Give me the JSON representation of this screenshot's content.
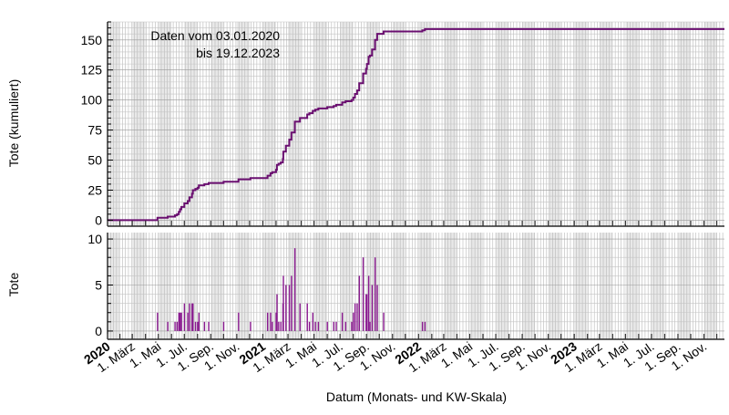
{
  "chart_data": [
    {
      "type": "line",
      "step": true,
      "ylabel": "Tote (kumuliert)",
      "ylim": [
        -5,
        165
      ],
      "yticks": [
        0,
        25,
        50,
        75,
        100,
        125,
        150
      ],
      "grid": true,
      "annotation": [
        "Daten vom 03.01.2020",
        "bis 19.12.2023"
      ],
      "date_range": [
        "2020-01-03",
        "2023-12-19"
      ],
      "color": "#6a0f70",
      "values_from": "cumulative sum of daily deaths"
    },
    {
      "type": "bar",
      "ylabel": "Tote",
      "ylim": [
        -0.9,
        10.7
      ],
      "yticks": [
        0,
        5,
        10
      ],
      "grid": true,
      "color": "#8a1a90",
      "events": [
        [
          "2020-04-29",
          2
        ],
        [
          "2020-05-23",
          1
        ],
        [
          "2020-06-09",
          1
        ],
        [
          "2020-06-14",
          1
        ],
        [
          "2020-06-18",
          2
        ],
        [
          "2020-06-21",
          2
        ],
        [
          "2020-06-24",
          2
        ],
        [
          "2020-07-01",
          3
        ],
        [
          "2020-07-09",
          2
        ],
        [
          "2020-07-13",
          3
        ],
        [
          "2020-07-19",
          3
        ],
        [
          "2020-07-21",
          3
        ],
        [
          "2020-07-27",
          1
        ],
        [
          "2020-08-01",
          1
        ],
        [
          "2020-08-04",
          2
        ],
        [
          "2020-08-17",
          1
        ],
        [
          "2020-08-27",
          1
        ],
        [
          "2020-10-01",
          1
        ],
        [
          "2020-11-05",
          2
        ],
        [
          "2020-12-03",
          1
        ],
        [
          "2021-01-12",
          2
        ],
        [
          "2021-01-19",
          2
        ],
        [
          "2021-01-23",
          1
        ],
        [
          "2021-02-01",
          2
        ],
        [
          "2021-02-03",
          4
        ],
        [
          "2021-02-07",
          1
        ],
        [
          "2021-02-12",
          1
        ],
        [
          "2021-02-17",
          3
        ],
        [
          "2021-02-18",
          6
        ],
        [
          "2021-02-24",
          5
        ],
        [
          "2021-03-04",
          5
        ],
        [
          "2021-03-09",
          6
        ],
        [
          "2021-03-17",
          9
        ],
        [
          "2021-03-29",
          3
        ],
        [
          "2021-04-15",
          3
        ],
        [
          "2021-04-20",
          1
        ],
        [
          "2021-04-28",
          2
        ],
        [
          "2021-05-04",
          1
        ],
        [
          "2021-05-11",
          1
        ],
        [
          "2021-06-01",
          1
        ],
        [
          "2021-06-16",
          1
        ],
        [
          "2021-06-22",
          1
        ],
        [
          "2021-07-06",
          2
        ],
        [
          "2021-07-14",
          1
        ],
        [
          "2021-07-28",
          1
        ],
        [
          "2021-08-01",
          2
        ],
        [
          "2021-08-05",
          3
        ],
        [
          "2021-08-10",
          3
        ],
        [
          "2021-08-15",
          6
        ],
        [
          "2021-08-24",
          8
        ],
        [
          "2021-08-31",
          4
        ],
        [
          "2021-09-02",
          4
        ],
        [
          "2021-09-06",
          6
        ],
        [
          "2021-09-09",
          1
        ],
        [
          "2021-09-14",
          5
        ],
        [
          "2021-09-21",
          8
        ],
        [
          "2021-09-26",
          5
        ],
        [
          "2021-10-11",
          2
        ],
        [
          "2022-01-10",
          1
        ],
        [
          "2022-01-16",
          1
        ]
      ]
    }
  ],
  "xaxis": {
    "label": "Datum (Monats- und KW-Skala)",
    "years": [
      "2020",
      "2021",
      "2022",
      "2023"
    ],
    "month_labels": [
      "1. März",
      "1. Mai",
      "1. Jul.",
      "1. Sep.",
      "1. Nov."
    ]
  }
}
